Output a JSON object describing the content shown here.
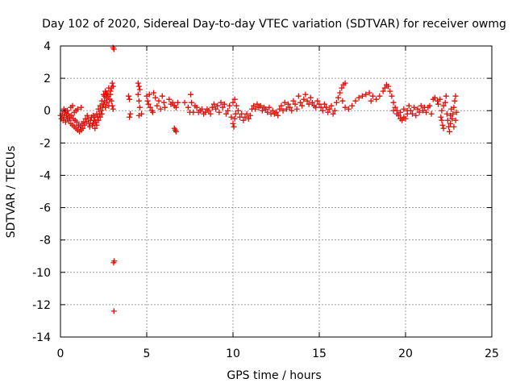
{
  "chart_data": {
    "type": "scatter",
    "title": "Day 102 of 2020, Sidereal Day-to-day VTEC variation (SDTVAR) for receiver owmg",
    "xlabel": "GPS time / hours",
    "ylabel": "SDTVAR / TECUs",
    "xlim": [
      0,
      25
    ],
    "ylim": [
      -14,
      4
    ],
    "xticks": [
      0,
      5,
      10,
      15,
      20,
      25
    ],
    "yticks": [
      -14,
      -12,
      -10,
      -8,
      -6,
      -4,
      -2,
      0,
      2,
      4
    ],
    "grid": true,
    "marker": "+",
    "colors": {
      "series": "#ff0000",
      "grid": "#a0a0a0",
      "axis": "#000000"
    },
    "series": [
      {
        "name": "SDTVAR",
        "points": [
          [
            0.0,
            -0.3
          ],
          [
            0.05,
            -0.5
          ],
          [
            0.1,
            -0.2
          ],
          [
            0.15,
            -0.6
          ],
          [
            0.2,
            -0.4
          ],
          [
            0.25,
            -0.1
          ],
          [
            0.3,
            -0.7
          ],
          [
            0.35,
            -0.3
          ],
          [
            0.4,
            -0.5
          ],
          [
            0.45,
            -0.2
          ],
          [
            0.5,
            -0.6
          ],
          [
            0.55,
            -0.4
          ],
          [
            0.6,
            -0.8
          ],
          [
            0.65,
            -0.3
          ],
          [
            0.7,
            -0.9
          ],
          [
            0.75,
            -0.5
          ],
          [
            0.8,
            -1.0
          ],
          [
            0.85,
            -0.6
          ],
          [
            0.9,
            -1.1
          ],
          [
            0.95,
            -0.7
          ],
          [
            1.0,
            -1.2
          ],
          [
            1.05,
            -0.9
          ],
          [
            1.1,
            -1.3
          ],
          [
            1.15,
            -1.0
          ],
          [
            1.2,
            -1.2
          ],
          [
            1.25,
            -0.8
          ],
          [
            1.3,
            -1.1
          ],
          [
            1.35,
            -0.7
          ],
          [
            1.4,
            -0.9
          ],
          [
            1.45,
            -0.5
          ],
          [
            1.5,
            -0.7
          ],
          [
            1.55,
            -0.3
          ],
          [
            1.6,
            -0.5
          ],
          [
            1.65,
            -0.8
          ],
          [
            1.7,
            -1.0
          ],
          [
            1.75,
            -0.6
          ],
          [
            1.8,
            -0.4
          ],
          [
            1.85,
            -0.9
          ],
          [
            1.9,
            -0.3
          ],
          [
            1.95,
            -0.6
          ],
          [
            2.0,
            -1.1
          ],
          [
            2.05,
            -0.7
          ],
          [
            2.1,
            -0.9
          ],
          [
            2.15,
            -0.4
          ],
          [
            2.2,
            -0.6
          ],
          [
            2.25,
            -0.2
          ],
          [
            2.3,
            -0.4
          ],
          [
            2.35,
            0.0
          ],
          [
            2.4,
            -0.2
          ],
          [
            2.45,
            0.2
          ],
          [
            2.5,
            0.4
          ],
          [
            2.55,
            0.6
          ],
          [
            2.6,
            0.2
          ],
          [
            2.65,
            0.8
          ],
          [
            2.7,
            0.5
          ],
          [
            2.75,
            0.9
          ],
          [
            2.8,
            0.3
          ],
          [
            2.85,
            0.7
          ],
          [
            2.9,
            1.0
          ],
          [
            2.95,
            0.6
          ],
          [
            3.0,
            0.3
          ],
          [
            3.05,
            0.1
          ],
          [
            3.1,
            3.8
          ],
          [
            3.05,
            3.9
          ],
          [
            3.08,
            -9.4
          ],
          [
            3.12,
            -9.3
          ],
          [
            3.1,
            -12.4
          ],
          [
            0.2,
            0.1
          ],
          [
            0.4,
            0.0
          ],
          [
            0.6,
            0.2
          ],
          [
            0.8,
            -0.1
          ],
          [
            1.0,
            0.1
          ],
          [
            1.2,
            0.2
          ],
          [
            0.3,
            0.0
          ],
          [
            0.7,
            0.3
          ],
          [
            0.9,
            0.0
          ],
          [
            1.9,
            -0.8
          ],
          [
            2.0,
            -0.4
          ],
          [
            2.1,
            -0.2
          ],
          [
            2.2,
            0.1
          ],
          [
            2.3,
            0.3
          ],
          [
            2.4,
            0.6
          ],
          [
            2.5,
            1.0
          ],
          [
            2.6,
            1.2
          ],
          [
            2.7,
            1.1
          ],
          [
            2.8,
            1.4
          ],
          [
            2.9,
            1.2
          ],
          [
            3.0,
            1.7
          ],
          [
            3.05,
            1.5
          ],
          [
            2.95,
            1.4
          ],
          [
            2.65,
            1.0
          ],
          [
            2.55,
            0.9
          ],
          [
            3.95,
            0.9
          ],
          [
            4.0,
            0.7
          ],
          [
            4.0,
            -0.4
          ],
          [
            4.05,
            -0.2
          ],
          [
            4.5,
            1.7
          ],
          [
            4.55,
            1.5
          ],
          [
            4.5,
            1.0
          ],
          [
            4.55,
            0.6
          ],
          [
            4.6,
            1.3
          ],
          [
            4.6,
            0.2
          ],
          [
            4.7,
            -0.2
          ],
          [
            4.55,
            -0.3
          ],
          [
            5.0,
            0.9
          ],
          [
            5.05,
            0.6
          ],
          [
            5.1,
            0.4
          ],
          [
            5.15,
            1.0
          ],
          [
            5.2,
            0.2
          ],
          [
            5.3,
            0.0
          ],
          [
            5.35,
            -0.1
          ],
          [
            5.4,
            1.1
          ],
          [
            5.5,
            0.8
          ],
          [
            5.6,
            0.3
          ],
          [
            5.7,
            0.6
          ],
          [
            5.8,
            0.1
          ],
          [
            5.9,
            0.9
          ],
          [
            6.0,
            0.5
          ],
          [
            6.05,
            0.2
          ],
          [
            6.3,
            0.7
          ],
          [
            6.4,
            0.4
          ],
          [
            6.5,
            0.5
          ],
          [
            6.6,
            0.3
          ],
          [
            6.7,
            0.2
          ],
          [
            6.8,
            0.5
          ],
          [
            6.6,
            -1.1
          ],
          [
            6.7,
            -1.3
          ],
          [
            6.65,
            -1.2
          ],
          [
            7.2,
            0.5
          ],
          [
            7.4,
            0.2
          ],
          [
            7.6,
            0.5
          ],
          [
            7.55,
            1.0
          ],
          [
            7.7,
            -0.1
          ],
          [
            7.5,
            -0.1
          ],
          [
            7.8,
            0.3
          ],
          [
            7.9,
            0.2
          ],
          [
            8.0,
            -0.1
          ],
          [
            8.1,
            0.0
          ],
          [
            8.2,
            0.1
          ],
          [
            8.3,
            -0.2
          ],
          [
            8.4,
            -0.1
          ],
          [
            8.5,
            0.1
          ],
          [
            8.6,
            0.0
          ],
          [
            8.7,
            -0.2
          ],
          [
            8.8,
            0.2
          ],
          [
            8.9,
            0.4
          ],
          [
            9.0,
            0.1
          ],
          [
            9.1,
            0.3
          ],
          [
            9.2,
            -0.1
          ],
          [
            9.3,
            0.5
          ],
          [
            9.4,
            0.2
          ],
          [
            9.5,
            0.4
          ],
          [
            9.6,
            -0.2
          ],
          [
            9.7,
            0.0
          ],
          [
            9.8,
            0.3
          ],
          [
            9.9,
            -0.4
          ],
          [
            10.0,
            -0.8
          ],
          [
            10.05,
            -1.0
          ],
          [
            10.1,
            -0.5
          ],
          [
            10.15,
            -0.2
          ],
          [
            10.0,
            0.5
          ],
          [
            10.1,
            0.7
          ],
          [
            10.2,
            0.3
          ],
          [
            10.3,
            0.0
          ],
          [
            10.4,
            -0.4
          ],
          [
            10.5,
            -0.2
          ],
          [
            10.6,
            -0.6
          ],
          [
            10.7,
            -0.4
          ],
          [
            10.8,
            -0.2
          ],
          [
            10.9,
            -0.5
          ],
          [
            11.0,
            -0.3
          ],
          [
            11.1,
            0.1
          ],
          [
            11.2,
            0.3
          ],
          [
            11.3,
            0.1
          ],
          [
            11.4,
            0.4
          ],
          [
            11.5,
            0.2
          ],
          [
            11.6,
            0.3
          ],
          [
            11.7,
            0.0
          ],
          [
            11.8,
            0.2
          ],
          [
            11.9,
            0.1
          ],
          [
            12.0,
            -0.1
          ],
          [
            12.1,
            0.2
          ],
          [
            12.2,
            -0.2
          ],
          [
            12.3,
            0.0
          ],
          [
            12.4,
            -0.2
          ],
          [
            12.5,
            -0.1
          ],
          [
            12.6,
            -0.3
          ],
          [
            12.7,
            0.1
          ],
          [
            12.8,
            0.3
          ],
          [
            12.9,
            0.0
          ],
          [
            13.0,
            0.5
          ],
          [
            13.1,
            0.1
          ],
          [
            13.2,
            0.4
          ],
          [
            13.3,
            0.2
          ],
          [
            13.4,
            0.0
          ],
          [
            13.5,
            0.6
          ],
          [
            13.6,
            0.4
          ],
          [
            13.7,
            0.1
          ],
          [
            13.8,
            0.9
          ],
          [
            13.9,
            0.5
          ],
          [
            14.0,
            0.3
          ],
          [
            14.1,
            0.7
          ],
          [
            14.2,
            1.0
          ],
          [
            14.3,
            0.6
          ],
          [
            14.4,
            0.4
          ],
          [
            14.5,
            0.8
          ],
          [
            14.6,
            0.5
          ],
          [
            14.7,
            0.3
          ],
          [
            14.8,
            0.2
          ],
          [
            14.9,
            0.6
          ],
          [
            15.0,
            0.4
          ],
          [
            15.1,
            0.2
          ],
          [
            15.2,
            0.0
          ],
          [
            15.3,
            0.4
          ],
          [
            15.4,
            0.2
          ],
          [
            15.5,
            -0.1
          ],
          [
            15.6,
            0.1
          ],
          [
            15.7,
            0.3
          ],
          [
            15.8,
            -0.2
          ],
          [
            15.9,
            0.0
          ],
          [
            16.0,
            0.5
          ],
          [
            16.1,
            0.8
          ],
          [
            16.2,
            1.1
          ],
          [
            16.3,
            1.4
          ],
          [
            16.4,
            1.6
          ],
          [
            16.5,
            1.7
          ],
          [
            16.35,
            0.6
          ],
          [
            16.5,
            0.2
          ],
          [
            16.7,
            0.1
          ],
          [
            16.9,
            0.3
          ],
          [
            17.1,
            0.6
          ],
          [
            17.3,
            0.8
          ],
          [
            17.5,
            0.9
          ],
          [
            17.7,
            1.0
          ],
          [
            17.9,
            1.1
          ],
          [
            18.0,
            0.6
          ],
          [
            18.1,
            0.9
          ],
          [
            18.3,
            0.7
          ],
          [
            18.5,
            0.9
          ],
          [
            18.7,
            1.2
          ],
          [
            18.8,
            1.4
          ],
          [
            18.9,
            1.6
          ],
          [
            19.0,
            1.5
          ],
          [
            19.1,
            1.2
          ],
          [
            19.2,
            0.9
          ],
          [
            19.3,
            0.5
          ],
          [
            19.4,
            0.2
          ],
          [
            19.5,
            0.0
          ],
          [
            19.6,
            -0.3
          ],
          [
            19.7,
            -0.5
          ],
          [
            19.8,
            -0.6
          ],
          [
            19.9,
            -0.4
          ],
          [
            20.0,
            -0.5
          ],
          [
            20.1,
            -0.2
          ],
          [
            19.3,
            0.0
          ],
          [
            19.5,
            -0.2
          ],
          [
            19.7,
            -0.1
          ],
          [
            19.9,
            0.1
          ],
          [
            20.1,
            0.0
          ],
          [
            20.2,
            0.3
          ],
          [
            20.3,
            0.0
          ],
          [
            20.4,
            -0.2
          ],
          [
            20.5,
            0.2
          ],
          [
            20.6,
            -0.3
          ],
          [
            20.7,
            0.1
          ],
          [
            20.8,
            -0.1
          ],
          [
            20.9,
            0.3
          ],
          [
            21.0,
            0.0
          ],
          [
            21.1,
            0.2
          ],
          [
            21.2,
            -0.1
          ],
          [
            21.3,
            0.2
          ],
          [
            21.4,
            0.3
          ],
          [
            21.5,
            -0.2
          ],
          [
            21.6,
            0.7
          ],
          [
            21.7,
            0.8
          ],
          [
            21.85,
            0.6
          ],
          [
            21.9,
            0.4
          ],
          [
            22.0,
            0.7
          ],
          [
            22.05,
            -0.4
          ],
          [
            22.1,
            -0.6
          ],
          [
            22.15,
            -0.9
          ],
          [
            22.2,
            -1.1
          ],
          [
            22.1,
            0.0
          ],
          [
            22.2,
            0.3
          ],
          [
            22.3,
            0.5
          ],
          [
            22.35,
            0.9
          ],
          [
            22.4,
            -0.2
          ],
          [
            22.45,
            -0.6
          ],
          [
            22.5,
            -1.0
          ],
          [
            22.55,
            -1.3
          ],
          [
            22.6,
            -0.8
          ],
          [
            22.6,
            -0.3
          ],
          [
            22.65,
            0.1
          ],
          [
            22.7,
            -0.5
          ],
          [
            22.75,
            -0.2
          ],
          [
            22.8,
            0.2
          ],
          [
            22.85,
            0.6
          ],
          [
            22.9,
            0.9
          ],
          [
            22.95,
            -0.1
          ],
          [
            22.9,
            -0.6
          ],
          [
            22.8,
            -1.0
          ]
        ]
      }
    ]
  }
}
